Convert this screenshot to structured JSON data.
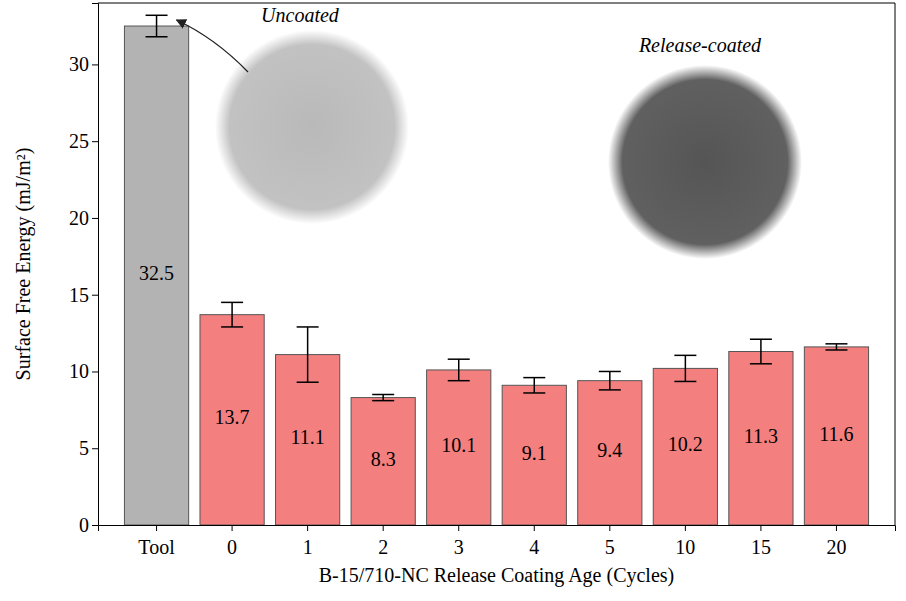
{
  "chart_data": {
    "type": "bar",
    "categories": [
      "Tool",
      "0",
      "1",
      "2",
      "3",
      "4",
      "5",
      "10",
      "15",
      "20"
    ],
    "values": [
      32.5,
      13.7,
      11.1,
      8.3,
      10.1,
      9.1,
      9.4,
      10.2,
      11.3,
      11.6
    ],
    "errors": [
      0.7,
      0.8,
      1.8,
      0.2,
      0.7,
      0.5,
      0.6,
      0.85,
      0.8,
      0.2
    ],
    "colors": [
      "#b3b3b3",
      "#f47f7f",
      "#f47f7f",
      "#f47f7f",
      "#f47f7f",
      "#f47f7f",
      "#f47f7f",
      "#f47f7f",
      "#f47f7f",
      "#f47f7f"
    ],
    "xlabel": "B-15/710-NC Release Coating Age (Cycles)",
    "ylabel": "Surface Free Energy (mJ/m²)",
    "ylim": [
      0,
      34
    ],
    "yticks": [
      0,
      5,
      10,
      15,
      20,
      25,
      30
    ],
    "grid": false,
    "data_labels": true,
    "annotations": [
      "Uncoated",
      "Release-coated"
    ]
  }
}
